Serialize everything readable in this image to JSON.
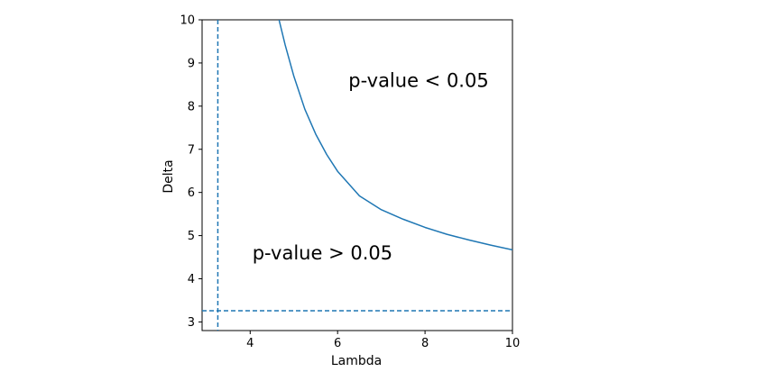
{
  "chart_data": {
    "type": "line",
    "xlabel": "Lambda",
    "ylabel": "Delta",
    "xlim": [
      2.9,
      10
    ],
    "ylim": [
      2.8,
      10
    ],
    "xticks": [
      4,
      6,
      8,
      10
    ],
    "yticks": [
      3,
      4,
      5,
      6,
      7,
      8,
      9,
      10
    ],
    "grid": false,
    "colors": {
      "series": "#1f77b4",
      "axes": "#000000"
    },
    "series": [
      {
        "style": "solid",
        "x": [
          4.66,
          4.8,
          5.0,
          5.25,
          5.5,
          5.75,
          6.0,
          6.5,
          7.0,
          7.5,
          8.0,
          8.5,
          9.0,
          9.5,
          10.0
        ],
        "y": [
          10.0,
          9.42,
          8.69,
          7.93,
          7.35,
          6.88,
          6.49,
          5.92,
          5.6,
          5.38,
          5.19,
          5.03,
          4.9,
          4.78,
          4.67
        ]
      }
    ],
    "reference_lines": [
      {
        "orientation": "vertical",
        "value": 3.26,
        "style": "dashed"
      },
      {
        "orientation": "horizontal",
        "value": 3.26,
        "style": "dashed"
      }
    ],
    "annotations": [
      {
        "text": "p-value < 0.05",
        "x": 6.25,
        "y": 8.45
      },
      {
        "text": "p-value > 0.05",
        "x": 4.05,
        "y": 4.45
      }
    ]
  }
}
